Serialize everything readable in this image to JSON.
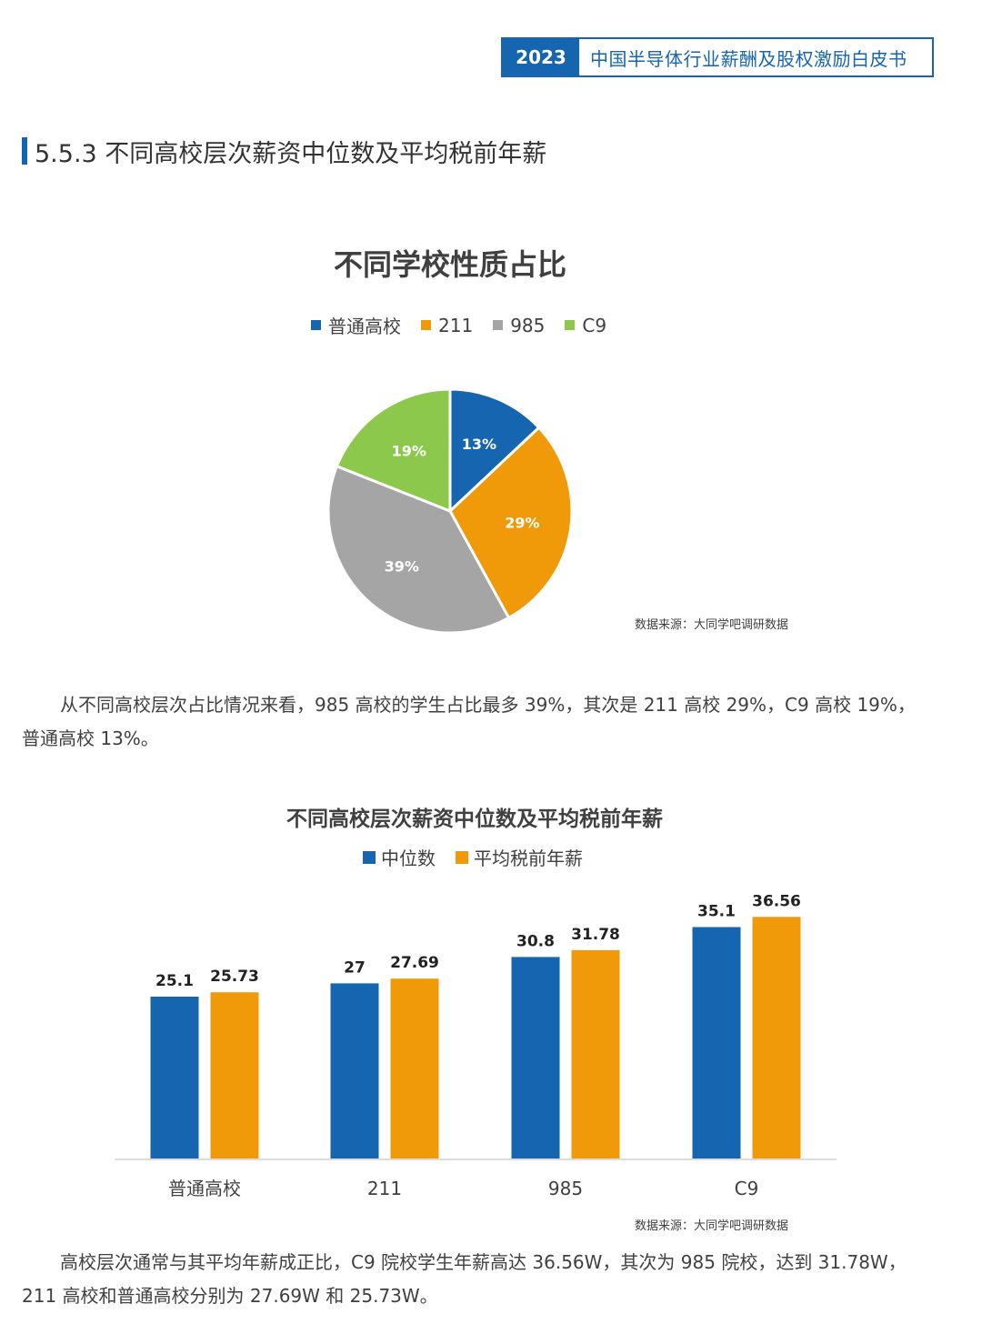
{
  "header": {
    "year": "2023",
    "report_title": "中国半导体行业薪酬及股权激励白皮书"
  },
  "section": {
    "title": "5.5.3 不同高校层次薪资中位数及平均税前年薪"
  },
  "colors": {
    "blue": "#1565b0",
    "orange": "#f09a0a",
    "gray": "#a5a5a5",
    "green": "#8cc84b"
  },
  "paragraphs": {
    "pie_summary": "从不同高校层次占比情况来看，985 高校的学生占比最多 39%，其次是 211 高校 29%，C9 高校 19%，普通高校 13%。",
    "bar_summary": "高校层次通常与其平均年薪成正比，C9 院校学生年薪高达 36.56W，其次为 985 院校，达到 31.78W，211 高校和普通高校分别为 27.69W 和 25.73W。"
  },
  "chart_data": [
    {
      "type": "pie",
      "title": "不同学校性质占比",
      "labels": [
        "普通高校",
        "211",
        "985",
        "C9"
      ],
      "values": [
        13,
        29,
        39,
        19
      ],
      "value_labels": [
        "13%",
        "29%",
        "39%",
        "19%"
      ],
      "colors": [
        "#1565b0",
        "#f09a0a",
        "#a5a5a5",
        "#8cc84b"
      ],
      "legend_position": "top",
      "source": "数据来源：大同学吧调研数据"
    },
    {
      "type": "bar",
      "title": "不同高校层次薪资中位数及平均税前年薪",
      "categories": [
        "普通高校",
        "211",
        "985",
        "C9"
      ],
      "series": [
        {
          "name": "中位数",
          "values": [
            25.1,
            27,
            30.8,
            35.1
          ],
          "labels": [
            "25.1",
            "27",
            "30.8",
            "35.1"
          ],
          "color": "#1565b0"
        },
        {
          "name": "平均税前年薪",
          "values": [
            25.73,
            27.69,
            31.78,
            36.56
          ],
          "labels": [
            "25.73",
            "27.69",
            "31.78",
            "36.56"
          ],
          "color": "#f09a0a"
        }
      ],
      "legend_position": "top",
      "grid": false,
      "source": "数据来源：大同学吧调研数据"
    }
  ]
}
